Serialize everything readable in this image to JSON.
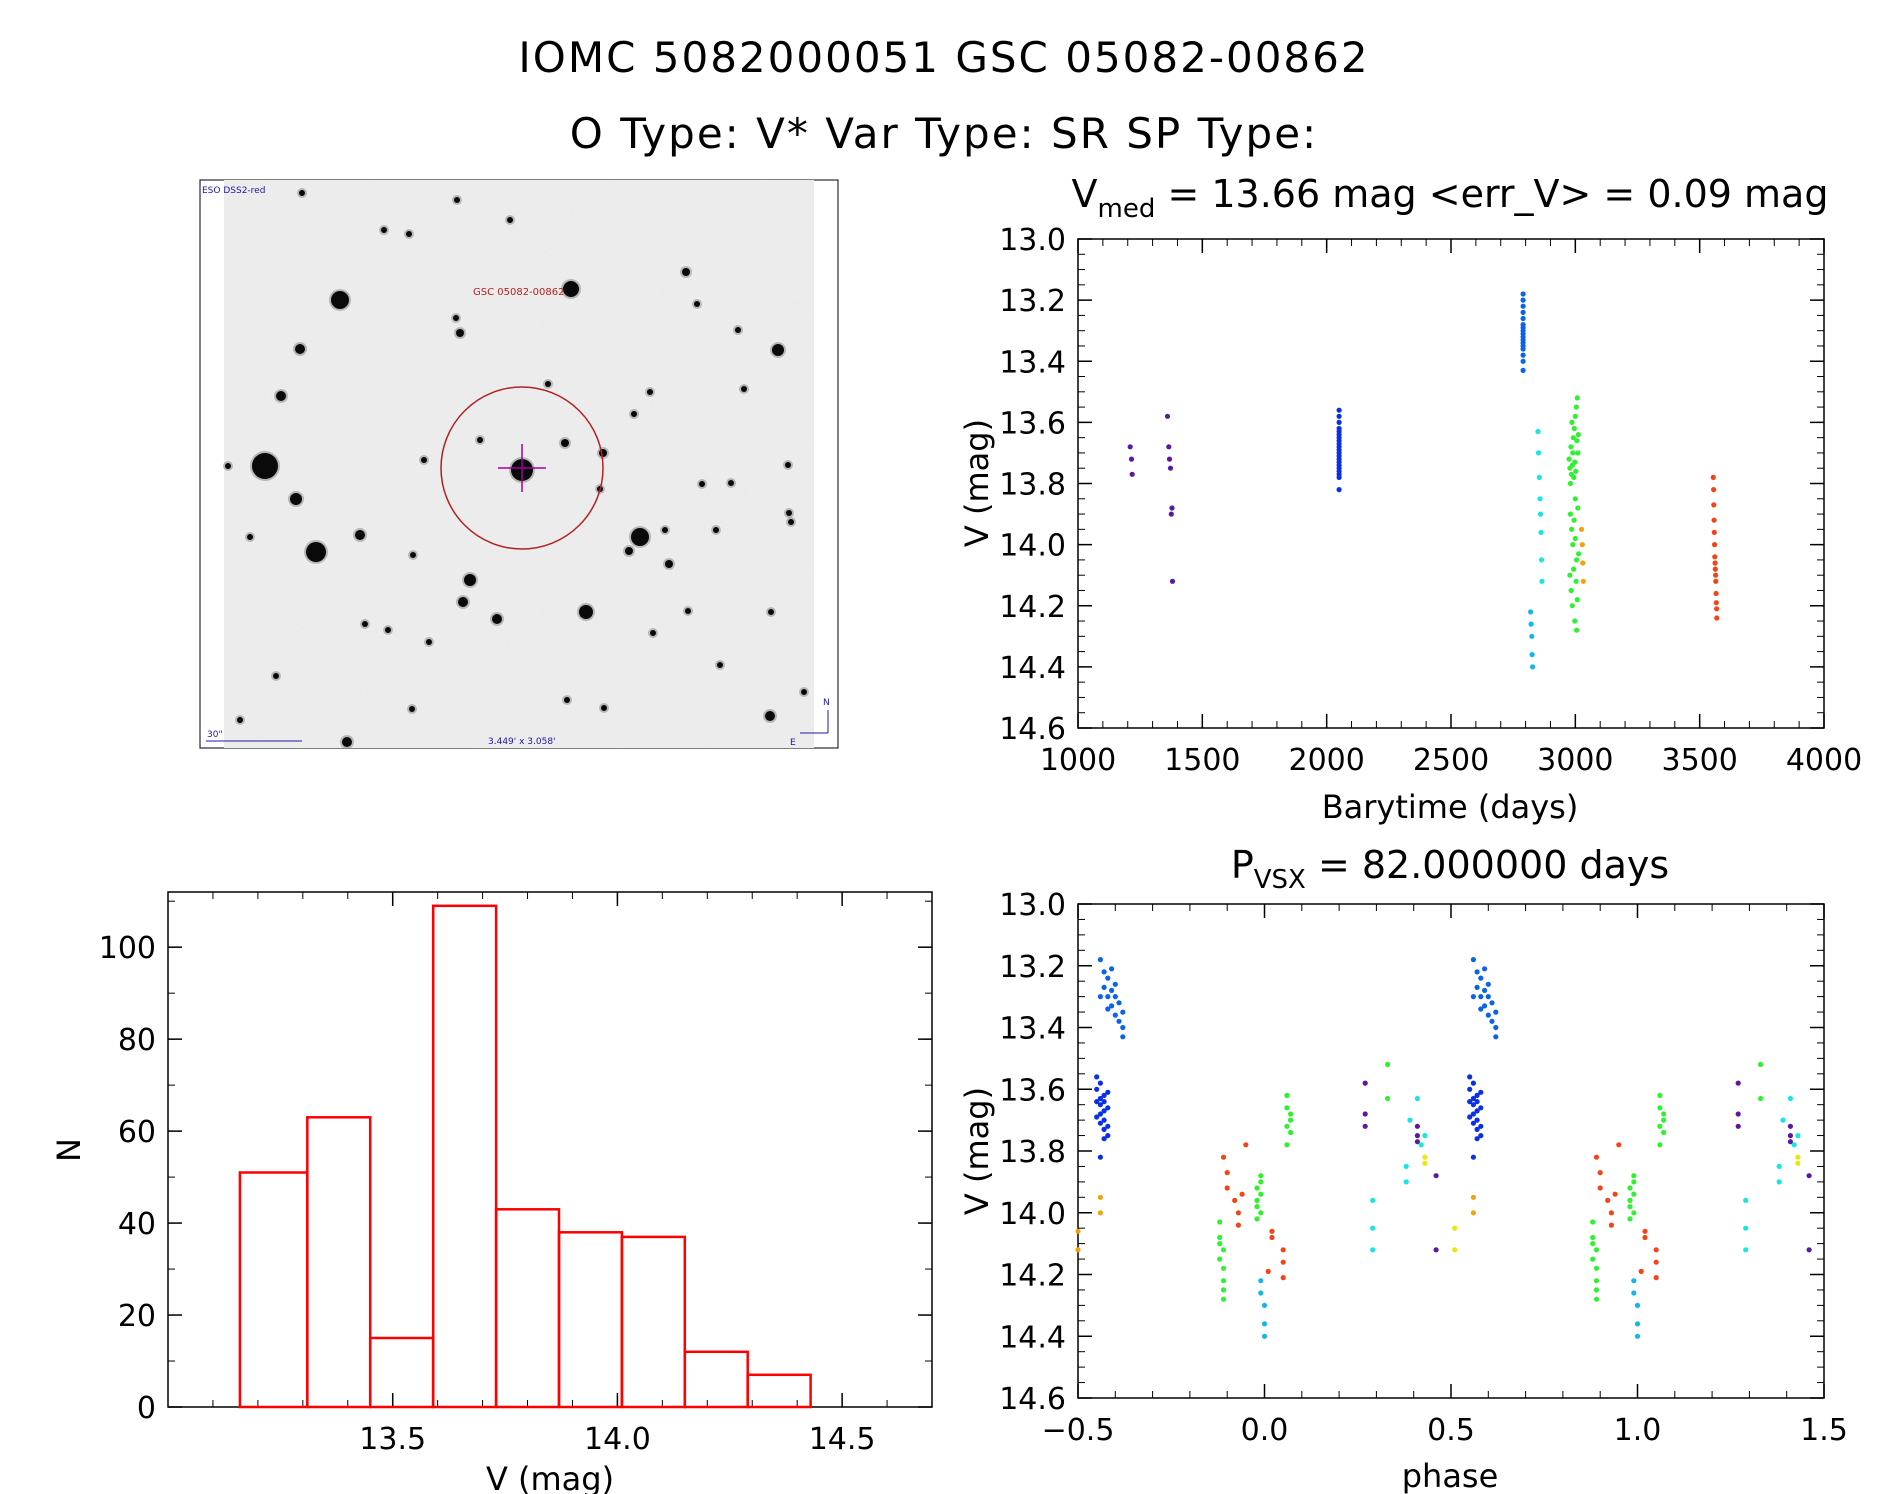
{
  "header": {
    "title_line1": "IOMC 5082000051    GSC 05082-00862",
    "title_line2": "O Type: V*  Var Type: SR  SP Type:"
  },
  "sky_image": {
    "survey_label": "ESO DSS2-red",
    "target_label": "GSC 05082-00862",
    "scale_label": "30\"",
    "fov_label": "3.449' x 3.058'",
    "north_label": "N",
    "east_label": "E"
  },
  "colors": {
    "hist": "#ff0000",
    "s1": "#5a1aa0",
    "s2": "#0a2fe6",
    "s3": "#0b63e8",
    "s4": "#18b4f0",
    "s5": "#2ef22e",
    "s6": "#18e6e6",
    "s7": "#f5a20a",
    "s8": "#f24418",
    "s9": "#e8e80a"
  },
  "chart_data": [
    {
      "id": "lightcurve",
      "type": "scatter",
      "title_main": "V",
      "title_sub": "med",
      "title_rest": " = 13.66 mag <err_V> = 0.09 mag",
      "xlabel": "Barytime (days)",
      "ylabel": "V (mag)",
      "xlim": [
        1000,
        4000
      ],
      "ylim": [
        14.6,
        13.0
      ],
      "yinvert": true,
      "xticks": [
        1000,
        1500,
        2000,
        2500,
        3000,
        3500,
        4000
      ],
      "xtick_labels": [
        "1000",
        "1500",
        "2000",
        "2500",
        "3000",
        "3500",
        "4000"
      ],
      "yticks": [
        13.0,
        13.2,
        13.4,
        13.6,
        13.8,
        14.0,
        14.2,
        14.4,
        14.6
      ],
      "ytick_labels": [
        "13.0",
        "13.2",
        "13.4",
        "13.6",
        "13.8",
        "14.0",
        "14.2",
        "14.4",
        "14.6"
      ],
      "series": [
        {
          "name": "s1",
          "x": [
            1210,
            1215,
            1218,
            1360,
            1365,
            1368,
            1372,
            1375,
            1378,
            1380
          ],
          "y": [
            13.68,
            13.72,
            13.77,
            13.58,
            13.68,
            13.72,
            13.75,
            13.9,
            13.88,
            14.12
          ]
        },
        {
          "name": "s2",
          "x": [
            2050,
            2050,
            2050,
            2050,
            2050,
            2050,
            2050,
            2050,
            2050,
            2050,
            2050,
            2050,
            2050,
            2050,
            2050,
            2050,
            2050,
            2050,
            2050,
            2050,
            2050
          ],
          "y": [
            13.56,
            13.58,
            13.6,
            13.62,
            13.63,
            13.64,
            13.65,
            13.66,
            13.67,
            13.68,
            13.69,
            13.7,
            13.71,
            13.72,
            13.73,
            13.74,
            13.75,
            13.76,
            13.77,
            13.78,
            13.82
          ]
        },
        {
          "name": "s3",
          "x": [
            2790,
            2790,
            2790,
            2790,
            2790,
            2790,
            2790,
            2790,
            2790,
            2790,
            2790,
            2790,
            2790,
            2790,
            2790,
            2790,
            2790
          ],
          "y": [
            13.18,
            13.2,
            13.22,
            13.24,
            13.26,
            13.28,
            13.29,
            13.3,
            13.31,
            13.32,
            13.33,
            13.34,
            13.35,
            13.36,
            13.38,
            13.4,
            13.43
          ]
        },
        {
          "name": "s4",
          "x": [
            2820,
            2822,
            2825,
            2826,
            2828
          ],
          "y": [
            14.22,
            14.26,
            14.3,
            14.36,
            14.4
          ]
        },
        {
          "name": "s6",
          "x": [
            2850,
            2852,
            2855,
            2858,
            2860,
            2862,
            2864,
            2866
          ],
          "y": [
            13.63,
            13.7,
            13.78,
            13.85,
            13.9,
            13.96,
            14.05,
            14.12
          ]
        },
        {
          "name": "s5",
          "x": [
            2975,
            2978,
            2980,
            2982,
            2984,
            2986,
            2988,
            2990,
            2992,
            2994,
            2996,
            2998,
            3000,
            3002,
            3004,
            3006,
            3008,
            3010,
            3012,
            2980,
            2985,
            2990,
            2995,
            3000,
            3005,
            3010,
            2978,
            2983,
            2988,
            2993,
            2998,
            3003,
            3008,
            3013,
            3000,
            3005
          ],
          "y": [
            13.72,
            13.75,
            13.8,
            13.68,
            13.77,
            13.6,
            13.74,
            13.7,
            13.65,
            13.78,
            13.62,
            13.73,
            13.58,
            13.76,
            13.55,
            13.66,
            13.52,
            13.7,
            13.64,
            13.9,
            13.95,
            14.0,
            13.92,
            13.98,
            14.05,
            13.88,
            14.1,
            14.15,
            14.2,
            14.08,
            14.25,
            14.12,
            14.18,
            14.03,
            13.85,
            14.28
          ]
        },
        {
          "name": "s7",
          "x": [
            3025,
            3028,
            3030,
            3032
          ],
          "y": [
            13.95,
            14.0,
            14.06,
            14.12
          ]
        },
        {
          "name": "s8",
          "x": [
            3555,
            3556,
            3557,
            3558,
            3559,
            3560,
            3561,
            3562,
            3563,
            3564,
            3565,
            3566,
            3567,
            3568,
            3569
          ],
          "y": [
            13.78,
            13.82,
            13.87,
            13.92,
            13.96,
            14.0,
            14.04,
            14.06,
            14.08,
            14.1,
            14.12,
            14.16,
            14.19,
            14.21,
            14.24
          ]
        }
      ]
    },
    {
      "id": "histogram",
      "type": "bar",
      "title": "",
      "xlabel": "V (mag)",
      "ylabel": "N",
      "xlim": [
        13.0,
        14.7
      ],
      "ylim": [
        0,
        112
      ],
      "xticks": [
        13.5,
        14.0,
        14.5
      ],
      "xtick_labels": [
        "13.5",
        "14.0",
        "14.5"
      ],
      "yticks": [
        0,
        20,
        40,
        60,
        80,
        100
      ],
      "ytick_labels": [
        "0",
        "20",
        "40",
        "60",
        "80",
        "100"
      ],
      "bin_edges": [
        13.16,
        13.31,
        13.45,
        13.59,
        13.73,
        13.87,
        14.01,
        14.15,
        14.29,
        14.43
      ],
      "values": [
        51,
        63,
        15,
        109,
        43,
        38,
        37,
        12,
        7
      ]
    },
    {
      "id": "phased",
      "type": "scatter",
      "title_main": "P",
      "title_sub": "VSX",
      "title_rest": " = 82.000000 days",
      "xlabel": "phase",
      "ylabel": "V (mag)",
      "xlim": [
        -0.5,
        1.5
      ],
      "ylim": [
        14.6,
        13.0
      ],
      "yinvert": true,
      "xticks": [
        -0.5,
        0.0,
        0.5,
        1.0,
        1.5
      ],
      "xtick_labels": [
        "−0.5",
        "0.0",
        "0.5",
        "1.0",
        "1.5"
      ],
      "yticks": [
        13.0,
        13.2,
        13.4,
        13.6,
        13.8,
        14.0,
        14.2,
        14.4,
        14.6
      ],
      "ytick_labels": [
        "13.0",
        "13.2",
        "13.4",
        "13.6",
        "13.8",
        "14.0",
        "14.2",
        "14.4",
        "14.6"
      ],
      "series": [
        {
          "name": "s3",
          "x": [
            -0.44,
            -0.43,
            -0.43,
            -0.42,
            -0.42,
            -0.41,
            -0.41,
            -0.4,
            -0.4,
            -0.39,
            -0.39,
            -0.38,
            -0.38,
            -0.44,
            -0.42,
            -0.4,
            -0.38,
            -0.41
          ],
          "y": [
            13.18,
            13.22,
            13.27,
            13.3,
            13.24,
            13.28,
            13.33,
            13.3,
            13.36,
            13.32,
            13.38,
            13.35,
            13.4,
            13.3,
            13.34,
            13.26,
            13.43,
            13.21
          ]
        },
        {
          "name": "s2",
          "x": [
            -0.45,
            -0.45,
            -0.44,
            -0.44,
            -0.44,
            -0.43,
            -0.43,
            -0.43,
            -0.42,
            -0.42,
            -0.42,
            -0.45,
            -0.44,
            -0.43,
            -0.42,
            -0.44,
            -0.43,
            -0.45,
            -0.43,
            -0.44
          ],
          "y": [
            13.56,
            13.6,
            13.63,
            13.65,
            13.68,
            13.62,
            13.7,
            13.73,
            13.66,
            13.72,
            13.75,
            13.64,
            13.58,
            13.67,
            13.61,
            13.71,
            13.76,
            13.69,
            13.64,
            13.82
          ]
        },
        {
          "name": "s7",
          "x": [
            -0.44,
            -0.44,
            -0.5,
            -0.5
          ],
          "y": [
            13.95,
            14.0,
            14.06,
            14.12
          ]
        },
        {
          "name": "s5",
          "x": [
            -0.12,
            -0.12,
            -0.11,
            -0.11,
            -0.11,
            -0.12,
            -0.11,
            -0.12,
            -0.11,
            -0.01,
            -0.02,
            -0.02,
            -0.01,
            -0.01,
            -0.02,
            -0.01,
            -0.02,
            0.06,
            0.06,
            0.07,
            0.07,
            0.06,
            0.07,
            0.06
          ],
          "y": [
            14.03,
            14.08,
            14.12,
            14.18,
            14.22,
            14.15,
            14.28,
            14.1,
            14.25,
            13.88,
            13.92,
            13.96,
            14.0,
            13.94,
            14.02,
            13.9,
            13.98,
            13.62,
            13.66,
            13.7,
            13.74,
            13.78,
            13.68,
            13.72
          ]
        },
        {
          "name": "s8",
          "x": [
            -0.11,
            -0.1,
            -0.1,
            -0.08,
            -0.07,
            -0.07,
            -0.05,
            -0.06,
            0.02,
            0.02,
            0.05,
            0.05,
            0.05,
            0.01
          ],
          "y": [
            13.82,
            13.87,
            13.92,
            13.96,
            14.0,
            14.04,
            13.78,
            13.94,
            14.06,
            14.08,
            14.12,
            14.16,
            14.21,
            14.19
          ]
        },
        {
          "name": "s4",
          "x": [
            -0.01,
            -0.01,
            0.0,
            0.0,
            0.0
          ],
          "y": [
            14.22,
            14.26,
            14.3,
            14.36,
            14.4
          ]
        },
        {
          "name": "s1",
          "x": [
            0.27,
            0.27,
            0.27,
            0.41,
            0.41,
            0.41,
            0.46,
            0.46
          ],
          "y": [
            13.58,
            13.68,
            13.72,
            13.72,
            13.75,
            13.77,
            13.88,
            14.12
          ]
        },
        {
          "name": "s5",
          "x": [
            0.33,
            0.33
          ],
          "y": [
            13.52,
            13.63
          ]
        },
        {
          "name": "s6",
          "x": [
            0.29,
            0.29,
            0.29,
            0.38,
            0.38,
            0.39,
            0.41,
            0.42,
            0.43
          ],
          "y": [
            13.96,
            14.05,
            14.12,
            13.85,
            13.9,
            13.7,
            13.63,
            13.78,
            13.75
          ]
        },
        {
          "name": "s9",
          "x": [
            0.43,
            0.43,
            0.51,
            0.51
          ],
          "y": [
            13.82,
            13.84,
            14.05,
            14.12
          ]
        },
        {
          "name": "s7",
          "x": [
            0.56,
            0.56
          ],
          "y": [
            13.95,
            14.0
          ]
        },
        {
          "name": "s3",
          "x": [
            0.56,
            0.57,
            0.57,
            0.58,
            0.58,
            0.59,
            0.59,
            0.6,
            0.6,
            0.61,
            0.61,
            0.62,
            0.62,
            0.56,
            0.58,
            0.6,
            0.62,
            0.59
          ],
          "y": [
            13.18,
            13.22,
            13.27,
            13.3,
            13.24,
            13.28,
            13.33,
            13.3,
            13.36,
            13.32,
            13.38,
            13.35,
            13.4,
            13.3,
            13.34,
            13.26,
            13.43,
            13.21
          ]
        },
        {
          "name": "s2",
          "x": [
            0.55,
            0.55,
            0.56,
            0.56,
            0.56,
            0.57,
            0.57,
            0.57,
            0.58,
            0.58,
            0.58,
            0.55,
            0.56,
            0.57,
            0.58,
            0.56,
            0.57,
            0.55,
            0.57,
            0.56
          ],
          "y": [
            13.56,
            13.6,
            13.63,
            13.65,
            13.68,
            13.62,
            13.7,
            13.73,
            13.66,
            13.72,
            13.75,
            13.64,
            13.58,
            13.67,
            13.61,
            13.71,
            13.76,
            13.69,
            13.64,
            13.82
          ]
        },
        {
          "name": "s5",
          "x": [
            0.88,
            0.88,
            0.89,
            0.89,
            0.89,
            0.88,
            0.89,
            0.88,
            0.89,
            0.99,
            0.98,
            0.98,
            0.99,
            0.99,
            0.98,
            0.99,
            0.98,
            1.06,
            1.06,
            1.07,
            1.07,
            1.06,
            1.07,
            1.06
          ],
          "y": [
            14.03,
            14.08,
            14.12,
            14.18,
            14.22,
            14.15,
            14.28,
            14.1,
            14.25,
            13.88,
            13.92,
            13.96,
            14.0,
            13.94,
            14.02,
            13.9,
            13.98,
            13.62,
            13.66,
            13.7,
            13.74,
            13.78,
            13.68,
            13.72
          ]
        },
        {
          "name": "s8",
          "x": [
            0.89,
            0.9,
            0.9,
            0.92,
            0.93,
            0.93,
            0.95,
            0.94,
            1.02,
            1.02,
            1.05,
            1.05,
            1.05,
            1.01
          ],
          "y": [
            13.82,
            13.87,
            13.92,
            13.96,
            14.0,
            14.04,
            13.78,
            13.94,
            14.06,
            14.08,
            14.12,
            14.16,
            14.21,
            14.19
          ]
        },
        {
          "name": "s4",
          "x": [
            0.99,
            0.99,
            1.0,
            1.0,
            1.0
          ],
          "y": [
            14.22,
            14.26,
            14.3,
            14.36,
            14.4
          ]
        },
        {
          "name": "s1",
          "x": [
            1.27,
            1.27,
            1.27,
            1.41,
            1.41,
            1.41,
            1.46,
            1.46
          ],
          "y": [
            13.58,
            13.68,
            13.72,
            13.72,
            13.75,
            13.77,
            13.88,
            14.12
          ]
        },
        {
          "name": "s5",
          "x": [
            1.33,
            1.33
          ],
          "y": [
            13.52,
            13.63
          ]
        },
        {
          "name": "s6",
          "x": [
            1.29,
            1.29,
            1.29,
            1.38,
            1.38,
            1.39,
            1.41,
            1.42,
            1.43
          ],
          "y": [
            13.96,
            14.05,
            14.12,
            13.85,
            13.9,
            13.7,
            13.63,
            13.78,
            13.75
          ]
        },
        {
          "name": "s9",
          "x": [
            1.43,
            1.43
          ],
          "y": [
            13.82,
            13.84
          ]
        }
      ]
    }
  ]
}
